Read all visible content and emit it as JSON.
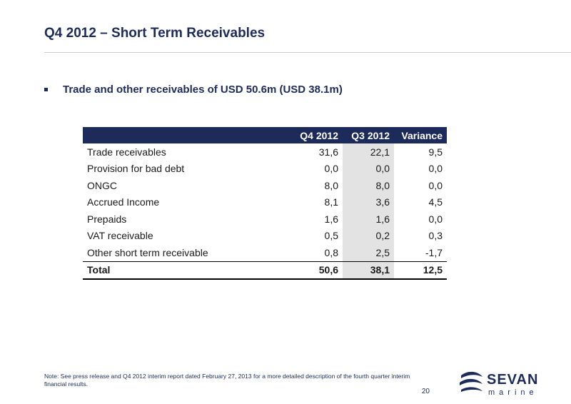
{
  "slide": {
    "title": "Q4 2012 – Short Term Receivables",
    "bullet": "Trade and other receivables of USD 50.6m (USD 38.1m)"
  },
  "table": {
    "headers": {
      "label": "",
      "q4": "Q4 2012",
      "q3": "Q3 2012",
      "variance": "Variance"
    },
    "rows": [
      {
        "label": "Trade receivables",
        "q4": "31,6",
        "q3": "22,1",
        "variance": "9,5"
      },
      {
        "label": "Provision for bad debt",
        "q4": "0,0",
        "q3": "0,0",
        "variance": "0,0"
      },
      {
        "label": "ONGC",
        "q4": "8,0",
        "q3": "8,0",
        "variance": "0,0"
      },
      {
        "label": "Accrued Income",
        "q4": "8,1",
        "q3": "3,6",
        "variance": "4,5"
      },
      {
        "label": "Prepaids",
        "q4": "1,6",
        "q3": "1,6",
        "variance": "0,0"
      },
      {
        "label": "VAT receivable",
        "q4": "0,5",
        "q3": "0,2",
        "variance": "0,3"
      },
      {
        "label": "Other short term receivable",
        "q4": "0,8",
        "q3": "2,5",
        "variance": "-1,7"
      }
    ],
    "total": {
      "label": "Total",
      "q4": "50,6",
      "q3": "38,1",
      "variance": "12,5"
    }
  },
  "footer": {
    "note": "Note: See press release and Q4 2012 interim report dated February 27, 2013 for a more detailed description of the fourth quarter interim financial results.",
    "page_number": "20",
    "logo_word": "SEVAN",
    "logo_subword": "marine"
  },
  "colors": {
    "brand_navy": "#1c2b5a",
    "highlight_column": "#e3e3e3"
  }
}
